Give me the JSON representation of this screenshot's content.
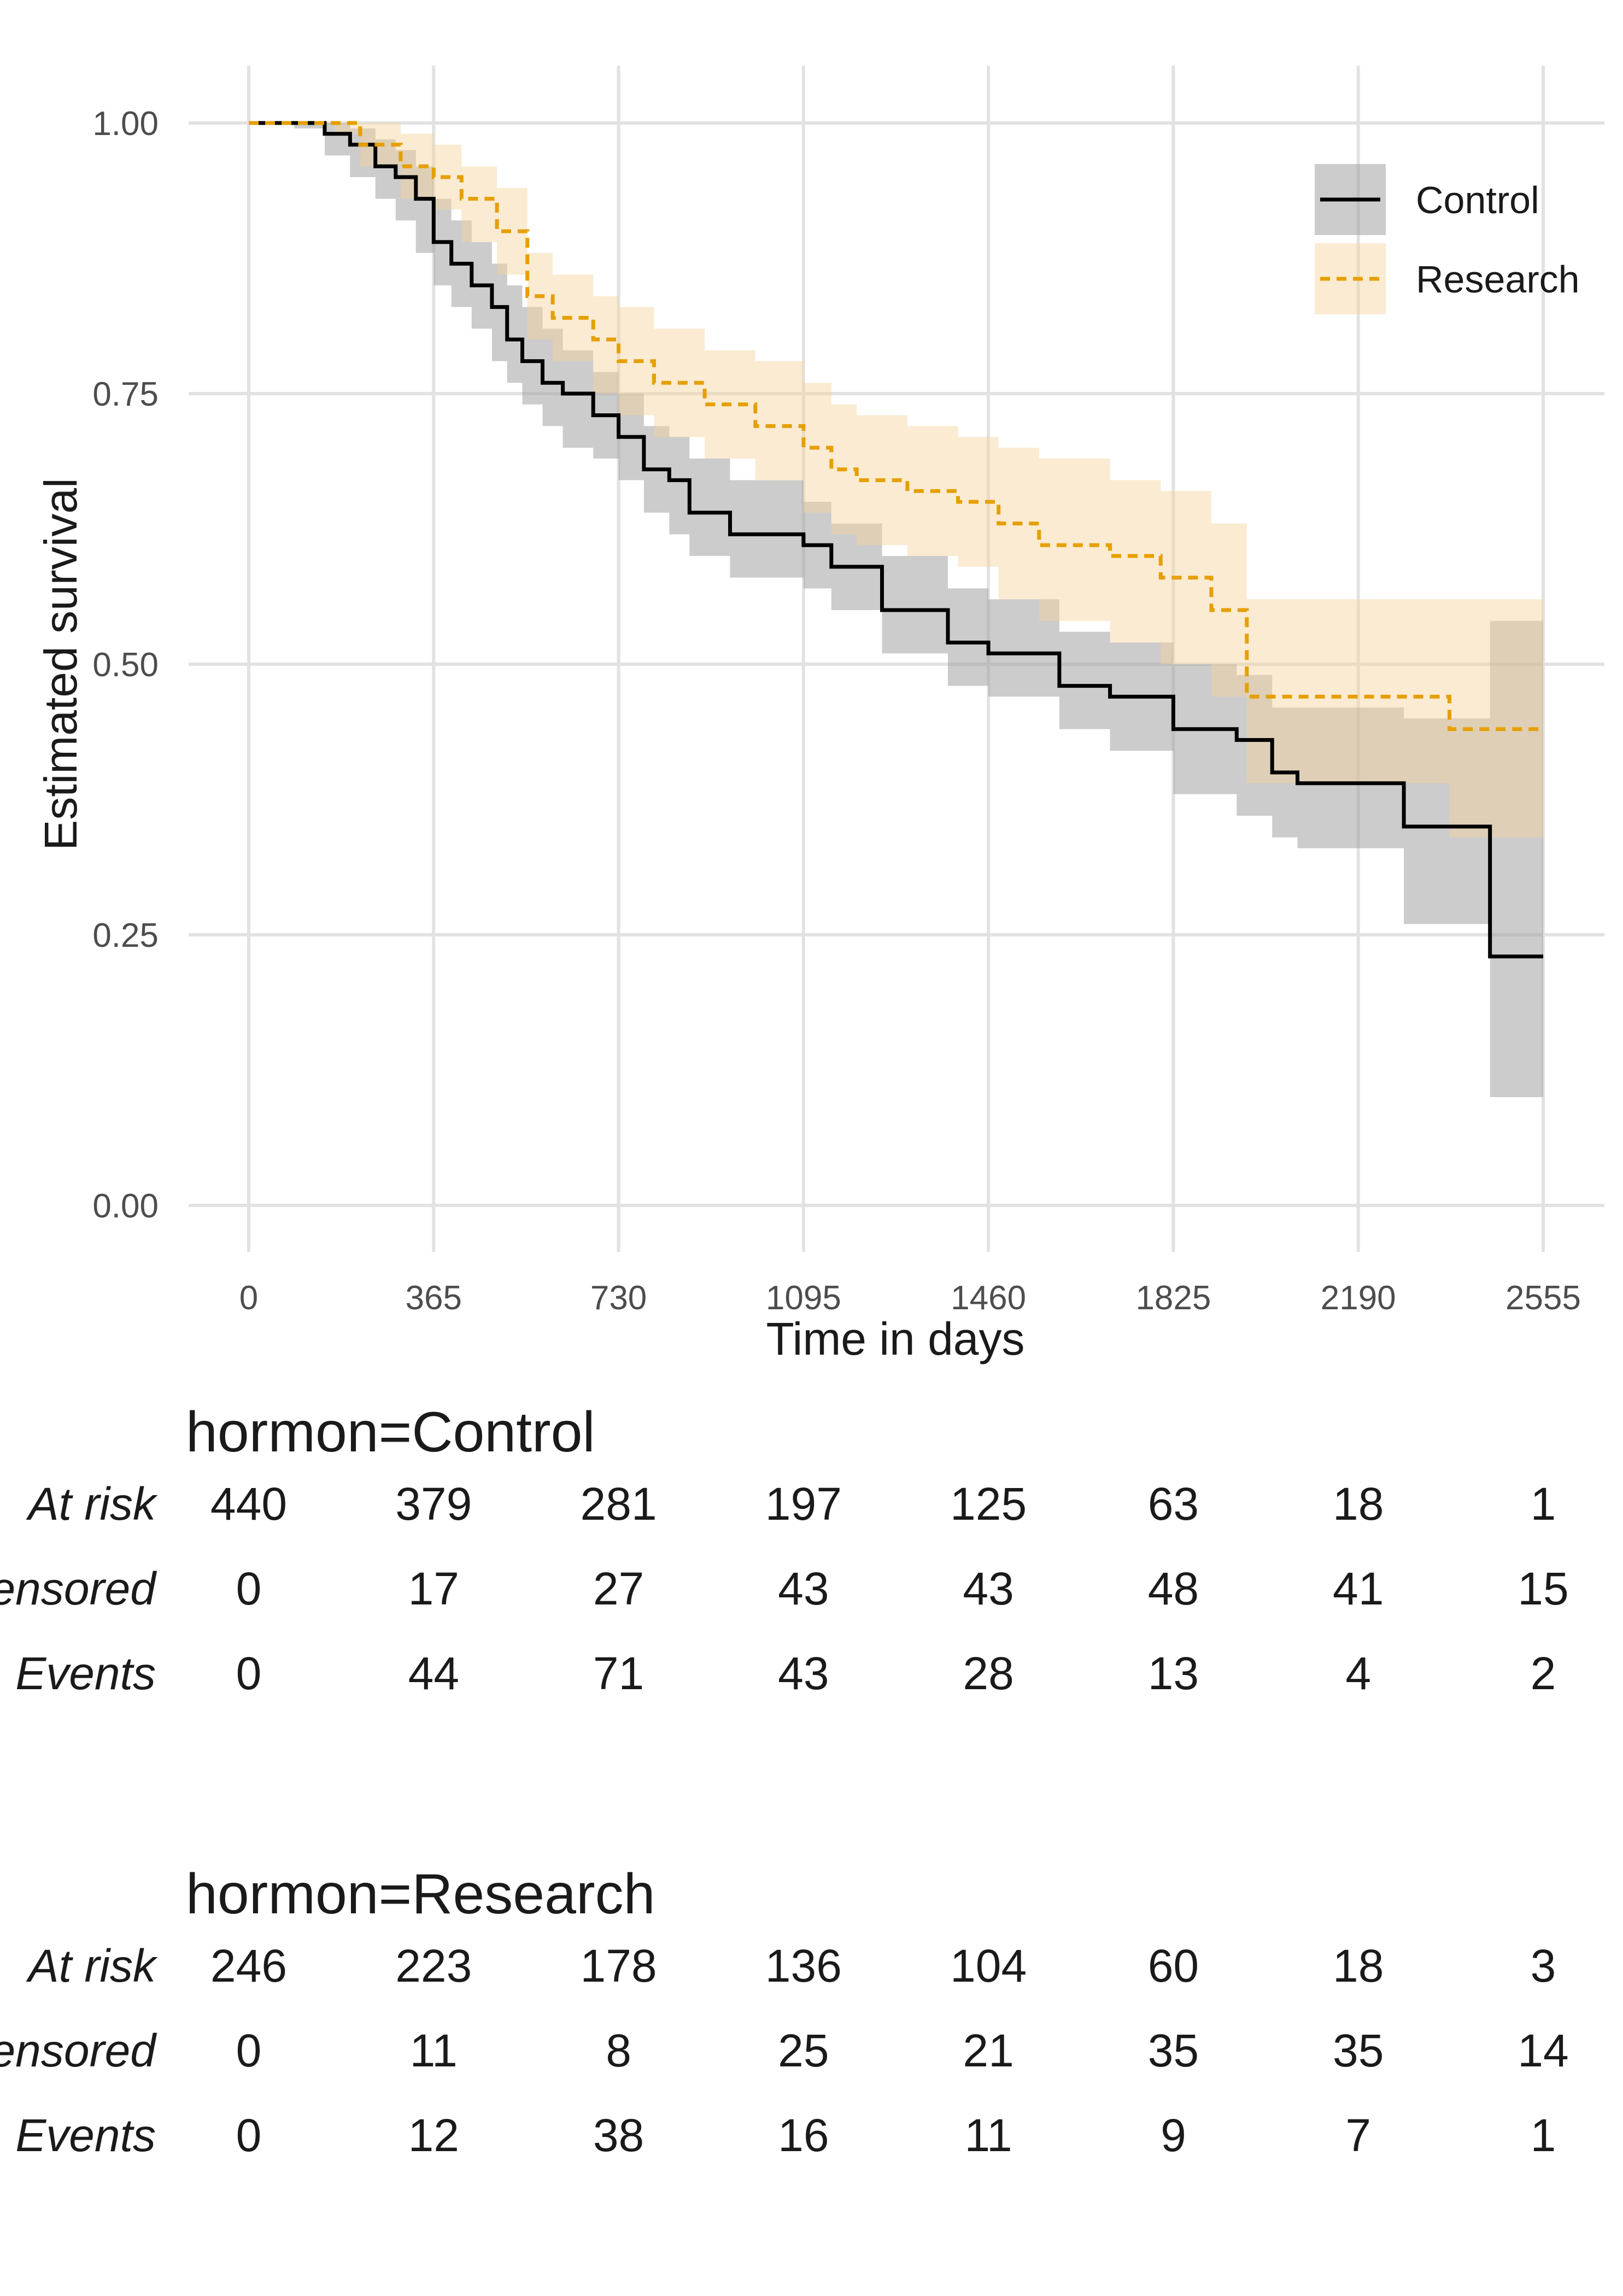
{
  "chart_data": {
    "type": "line",
    "subtype": "kaplan-meier survival curves with 95% confidence bands",
    "xlabel": "Time in days",
    "ylabel": "Estimated survival",
    "xlim": [
      0,
      2555
    ],
    "ylim": [
      0,
      1
    ],
    "x_ticks": [
      "0",
      "365",
      "730",
      "1095",
      "1460",
      "1825",
      "2190",
      "2555"
    ],
    "y_ticks": [
      "0.00",
      "0.25",
      "0.50",
      "0.75",
      "1.00"
    ],
    "grid": true,
    "legend_position": "top-right",
    "series": [
      {
        "name": "Control",
        "color": "#000000",
        "band_color": "#999999",
        "line_style": "solid",
        "points": [
          [
            0,
            1.0
          ],
          [
            90,
            1.0
          ],
          [
            150,
            0.99
          ],
          [
            200,
            0.98
          ],
          [
            250,
            0.96
          ],
          [
            290,
            0.95
          ],
          [
            330,
            0.93
          ],
          [
            365,
            0.89
          ],
          [
            400,
            0.87
          ],
          [
            440,
            0.85
          ],
          [
            480,
            0.83
          ],
          [
            510,
            0.8
          ],
          [
            540,
            0.78
          ],
          [
            580,
            0.76
          ],
          [
            620,
            0.75
          ],
          [
            680,
            0.73
          ],
          [
            730,
            0.71
          ],
          [
            780,
            0.68
          ],
          [
            830,
            0.67
          ],
          [
            870,
            0.64
          ],
          [
            950,
            0.62
          ],
          [
            1095,
            0.61
          ],
          [
            1150,
            0.59
          ],
          [
            1250,
            0.55
          ],
          [
            1380,
            0.52
          ],
          [
            1460,
            0.51
          ],
          [
            1600,
            0.48
          ],
          [
            1700,
            0.47
          ],
          [
            1825,
            0.44
          ],
          [
            1950,
            0.43
          ],
          [
            2020,
            0.4
          ],
          [
            2070,
            0.39
          ],
          [
            2280,
            0.35
          ],
          [
            2450,
            0.23
          ],
          [
            2555,
            0.23
          ]
        ],
        "lower": [
          [
            0,
            1.0
          ],
          [
            90,
            0.995
          ],
          [
            150,
            0.97
          ],
          [
            200,
            0.95
          ],
          [
            250,
            0.93
          ],
          [
            290,
            0.91
          ],
          [
            330,
            0.88
          ],
          [
            365,
            0.85
          ],
          [
            400,
            0.83
          ],
          [
            440,
            0.81
          ],
          [
            480,
            0.78
          ],
          [
            510,
            0.76
          ],
          [
            540,
            0.74
          ],
          [
            580,
            0.72
          ],
          [
            620,
            0.7
          ],
          [
            680,
            0.69
          ],
          [
            730,
            0.67
          ],
          [
            780,
            0.64
          ],
          [
            830,
            0.62
          ],
          [
            870,
            0.6
          ],
          [
            950,
            0.58
          ],
          [
            1095,
            0.57
          ],
          [
            1150,
            0.55
          ],
          [
            1250,
            0.51
          ],
          [
            1380,
            0.48
          ],
          [
            1460,
            0.47
          ],
          [
            1600,
            0.44
          ],
          [
            1700,
            0.42
          ],
          [
            1825,
            0.38
          ],
          [
            1950,
            0.36
          ],
          [
            2020,
            0.34
          ],
          [
            2070,
            0.33
          ],
          [
            2280,
            0.26
          ],
          [
            2450,
            0.1
          ],
          [
            2555,
            0.1
          ]
        ],
        "upper": [
          [
            0,
            1.0
          ],
          [
            90,
            1.0
          ],
          [
            150,
            1.0
          ],
          [
            200,
            0.995
          ],
          [
            250,
            0.985
          ],
          [
            290,
            0.975
          ],
          [
            330,
            0.96
          ],
          [
            365,
            0.93
          ],
          [
            400,
            0.91
          ],
          [
            440,
            0.89
          ],
          [
            480,
            0.87
          ],
          [
            510,
            0.85
          ],
          [
            540,
            0.83
          ],
          [
            580,
            0.81
          ],
          [
            620,
            0.79
          ],
          [
            680,
            0.77
          ],
          [
            730,
            0.75
          ],
          [
            780,
            0.72
          ],
          [
            830,
            0.71
          ],
          [
            870,
            0.69
          ],
          [
            950,
            0.67
          ],
          [
            1095,
            0.65
          ],
          [
            1150,
            0.63
          ],
          [
            1250,
            0.6
          ],
          [
            1380,
            0.57
          ],
          [
            1460,
            0.56
          ],
          [
            1600,
            0.53
          ],
          [
            1700,
            0.52
          ],
          [
            1825,
            0.5
          ],
          [
            1950,
            0.49
          ],
          [
            2020,
            0.46
          ],
          [
            2070,
            0.46
          ],
          [
            2280,
            0.45
          ],
          [
            2450,
            0.54
          ],
          [
            2555,
            0.54
          ]
        ]
      },
      {
        "name": "Research",
        "color": "#E69F00",
        "band_color": "#F4D29B",
        "line_style": "dashed",
        "points": [
          [
            0,
            1.0
          ],
          [
            170,
            1.0
          ],
          [
            220,
            0.98
          ],
          [
            300,
            0.96
          ],
          [
            365,
            0.95
          ],
          [
            420,
            0.93
          ],
          [
            490,
            0.9
          ],
          [
            550,
            0.84
          ],
          [
            600,
            0.82
          ],
          [
            680,
            0.8
          ],
          [
            730,
            0.78
          ],
          [
            800,
            0.76
          ],
          [
            900,
            0.74
          ],
          [
            1000,
            0.72
          ],
          [
            1095,
            0.7
          ],
          [
            1150,
            0.68
          ],
          [
            1200,
            0.67
          ],
          [
            1300,
            0.66
          ],
          [
            1400,
            0.65
          ],
          [
            1480,
            0.63
          ],
          [
            1560,
            0.61
          ],
          [
            1700,
            0.6
          ],
          [
            1800,
            0.58
          ],
          [
            1900,
            0.55
          ],
          [
            1970,
            0.47
          ],
          [
            2370,
            0.44
          ],
          [
            2555,
            0.44
          ]
        ],
        "lower": [
          [
            0,
            1.0
          ],
          [
            170,
            0.99
          ],
          [
            220,
            0.96
          ],
          [
            300,
            0.93
          ],
          [
            365,
            0.92
          ],
          [
            420,
            0.89
          ],
          [
            490,
            0.86
          ],
          [
            550,
            0.8
          ],
          [
            600,
            0.78
          ],
          [
            680,
            0.75
          ],
          [
            730,
            0.73
          ],
          [
            800,
            0.71
          ],
          [
            900,
            0.69
          ],
          [
            1000,
            0.67
          ],
          [
            1095,
            0.64
          ],
          [
            1150,
            0.62
          ],
          [
            1200,
            0.61
          ],
          [
            1300,
            0.6
          ],
          [
            1400,
            0.59
          ],
          [
            1480,
            0.56
          ],
          [
            1560,
            0.54
          ],
          [
            1700,
            0.52
          ],
          [
            1800,
            0.5
          ],
          [
            1900,
            0.47
          ],
          [
            1970,
            0.39
          ],
          [
            2370,
            0.34
          ],
          [
            2555,
            0.34
          ]
        ],
        "upper": [
          [
            0,
            1.0
          ],
          [
            170,
            1.0
          ],
          [
            220,
            1.0
          ],
          [
            300,
            0.99
          ],
          [
            365,
            0.98
          ],
          [
            420,
            0.96
          ],
          [
            490,
            0.94
          ],
          [
            550,
            0.88
          ],
          [
            600,
            0.86
          ],
          [
            680,
            0.84
          ],
          [
            730,
            0.83
          ],
          [
            800,
            0.81
          ],
          [
            900,
            0.79
          ],
          [
            1000,
            0.78
          ],
          [
            1095,
            0.76
          ],
          [
            1150,
            0.74
          ],
          [
            1200,
            0.73
          ],
          [
            1300,
            0.72
          ],
          [
            1400,
            0.71
          ],
          [
            1480,
            0.7
          ],
          [
            1560,
            0.69
          ],
          [
            1700,
            0.67
          ],
          [
            1800,
            0.66
          ],
          [
            1900,
            0.63
          ],
          [
            1970,
            0.56
          ],
          [
            2370,
            0.56
          ],
          [
            2555,
            0.56
          ]
        ]
      }
    ]
  },
  "risk_tables": [
    {
      "title": "hormon=Control",
      "rows": [
        {
          "label": "At risk",
          "values": [
            "440",
            "379",
            "281",
            "197",
            "125",
            "63",
            "18",
            "1"
          ]
        },
        {
          "label": "Censored",
          "values": [
            "0",
            "17",
            "27",
            "43",
            "43",
            "48",
            "41",
            "15"
          ]
        },
        {
          "label": "Events",
          "values": [
            "0",
            "44",
            "71",
            "43",
            "28",
            "13",
            "4",
            "2"
          ]
        }
      ]
    },
    {
      "title": "hormon=Research",
      "rows": [
        {
          "label": "At risk",
          "values": [
            "246",
            "223",
            "178",
            "136",
            "104",
            "60",
            "18",
            "3"
          ]
        },
        {
          "label": "Censored",
          "values": [
            "0",
            "11",
            "8",
            "25",
            "21",
            "35",
            "35",
            "14"
          ]
        },
        {
          "label": "Events",
          "values": [
            "0",
            "12",
            "38",
            "16",
            "11",
            "9",
            "7",
            "1"
          ]
        }
      ]
    }
  ]
}
